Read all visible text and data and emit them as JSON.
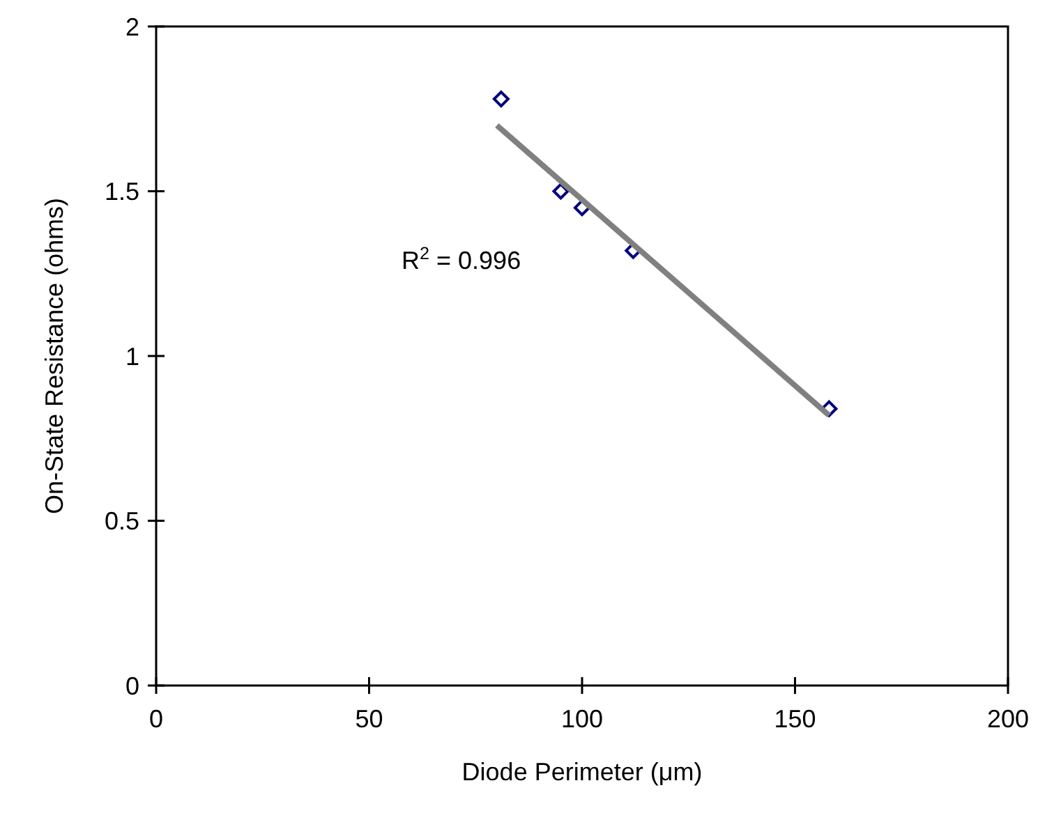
{
  "chart_data": {
    "type": "scatter",
    "xlabel": "Diode Perimeter (μm)",
    "ylabel": "On-State Resistance (ohms)",
    "xlim": [
      0,
      200
    ],
    "xticks": [
      0,
      50,
      100,
      150,
      200
    ],
    "ylim": [
      0,
      2
    ],
    "yticks": [
      0,
      0.5,
      1,
      1.5,
      2
    ],
    "grid": false,
    "series": [
      {
        "color": "#000080",
        "marker": "diamond",
        "x": [
          81,
          95,
          100,
          112,
          158
        ],
        "values": [
          1.78,
          1.5,
          1.45,
          1.32,
          0.84
        ]
      },
      {
        "type": "line",
        "color": "#808080",
        "marker": "none",
        "x": [
          80,
          158
        ],
        "values": [
          1.7,
          0.82
        ]
      }
    ],
    "annotations": [
      "R$^{2}$ = 0.996"
    ]
  }
}
